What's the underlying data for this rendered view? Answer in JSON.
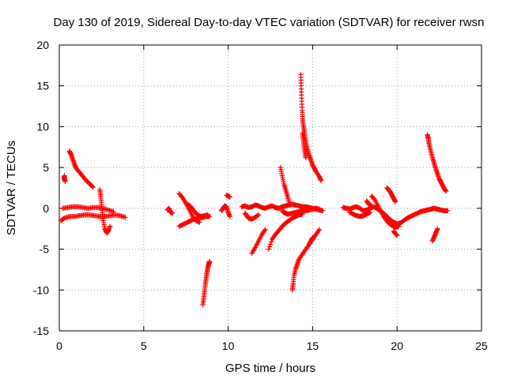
{
  "chart_data": {
    "type": "scatter",
    "title": "Day 130 of 2019, Sidereal Day-to-day VTEC variation (SDTVAR) for receiver rwsn",
    "xlabel": "GPS time / hours",
    "ylabel": "SDTVAR / TECUs",
    "xlim": [
      0,
      25
    ],
    "ylim": [
      -15,
      20
    ],
    "xticks": [
      0,
      5,
      10,
      15,
      20,
      25
    ],
    "yticks": [
      -15,
      -10,
      -5,
      0,
      5,
      10,
      15,
      20
    ],
    "xtick_labels": [
      "0",
      "5",
      "10",
      "15",
      "20",
      "25"
    ],
    "ytick_labels": [
      "-15",
      "-10",
      "-5",
      "0",
      "5",
      "10",
      "15",
      "20"
    ],
    "grid": true,
    "marker": "+",
    "color": "#ff0000",
    "series": [
      {
        "name": "SDTVAR",
        "segments": [
          {
            "x": [
              0.1,
              0.3,
              0.6,
              0.9,
              1.2,
              1.5,
              1.8,
              2.1,
              2.4,
              2.7,
              3.0,
              3.3,
              3.6,
              3.9
            ],
            "y": [
              -1.5,
              -1.2,
              -1.0,
              -1.0,
              -0.9,
              -0.8,
              -0.8,
              -0.9,
              -1.0,
              -1.0,
              -0.9,
              -0.8,
              -0.9,
              -1.1
            ]
          },
          {
            "x": [
              0.2,
              0.5,
              0.8,
              1.1,
              1.4,
              1.7,
              2.0,
              2.3,
              2.6,
              2.9,
              3.2
            ],
            "y": [
              0.0,
              0.1,
              0.2,
              0.2,
              0.1,
              0.0,
              0.1,
              0.1,
              0.0,
              -0.2,
              -0.4
            ]
          },
          {
            "x": [
              0.3,
              0.3,
              0.35
            ],
            "y": [
              4.0,
              3.6,
              3.3
            ]
          },
          {
            "x": [
              0.6,
              0.7,
              0.8,
              0.9,
              1.0,
              1.2,
              1.4,
              1.6,
              1.8,
              2.0
            ],
            "y": [
              7.0,
              6.6,
              6.0,
              5.4,
              4.9,
              4.4,
              3.9,
              3.4,
              3.0,
              2.6
            ]
          },
          {
            "x": [
              2.4,
              2.45,
              2.5,
              2.55,
              2.6,
              2.7,
              2.8,
              2.9,
              3.0
            ],
            "y": [
              2.3,
              1.5,
              0.5,
              -0.5,
              -1.5,
              -2.5,
              -3.0,
              -2.8,
              -2.2
            ]
          },
          {
            "x": [
              6.4,
              6.5,
              6.6,
              6.7
            ],
            "y": [
              -0.2,
              0.0,
              -0.5,
              -0.6
            ]
          },
          {
            "x": [
              7.1,
              7.3,
              7.5,
              7.7,
              7.9,
              8.1,
              8.3,
              8.5,
              8.7,
              8.9
            ],
            "y": [
              -2.2,
              -2.0,
              -1.8,
              -1.6,
              -1.4,
              -1.3,
              -1.2,
              -1.1,
              -1.0,
              -1.0
            ]
          },
          {
            "x": [
              7.1,
              7.3,
              7.5,
              7.7,
              7.9,
              8.1,
              8.3
            ],
            "y": [
              1.8,
              1.3,
              0.6,
              -0.2,
              -1.0,
              -1.5,
              -1.7
            ]
          },
          {
            "x": [
              7.6,
              7.8,
              8.0,
              8.2,
              8.4,
              8.6,
              8.8
            ],
            "y": [
              0.5,
              0.2,
              -0.4,
              -0.8,
              -1.0,
              -0.9,
              -0.8
            ]
          },
          {
            "x": [
              8.5,
              8.55,
              8.6,
              8.65,
              8.7,
              8.75,
              8.8,
              8.85,
              8.9
            ],
            "y": [
              -11.8,
              -11.0,
              -10.2,
              -9.3,
              -8.5,
              -7.8,
              -7.2,
              -6.8,
              -6.5
            ]
          },
          {
            "x": [
              9.6,
              9.7,
              9.8,
              9.9,
              10.0,
              10.1
            ],
            "y": [
              -0.3,
              0.0,
              0.3,
              0.2,
              -0.5,
              -1.0
            ]
          },
          {
            "x": [
              9.9,
              10.0,
              10.1
            ],
            "y": [
              1.6,
              1.5,
              1.4
            ]
          },
          {
            "x": [
              10.8,
              11.0,
              11.2,
              11.4,
              11.6,
              11.8,
              12.0,
              12.2,
              12.4,
              12.6,
              12.8,
              13.0,
              13.2,
              13.4,
              13.6,
              13.8,
              14.0,
              14.2,
              14.4,
              14.6,
              14.8,
              15.0,
              15.2,
              15.4,
              15.6
            ],
            "y": [
              0.2,
              0.3,
              0.1,
              0.2,
              0.4,
              0.3,
              0.1,
              0.0,
              0.2,
              0.3,
              0.1,
              0.0,
              0.2,
              0.3,
              0.4,
              0.5,
              0.4,
              0.3,
              0.2,
              0.2,
              0.1,
              0.0,
              -0.1,
              -0.2,
              -0.3
            ]
          },
          {
            "x": [
              11.0,
              11.1,
              11.2,
              11.4,
              11.6,
              11.8
            ],
            "y": [
              -0.6,
              -0.9,
              -1.2,
              -1.3,
              -1.1,
              -0.8
            ]
          },
          {
            "x": [
              11.4,
              11.6,
              11.8,
              12.0,
              12.2
            ],
            "y": [
              -5.5,
              -4.8,
              -4.0,
              -3.2,
              -2.6
            ]
          },
          {
            "x": [
              12.4,
              12.6,
              12.8,
              13.0,
              13.2,
              13.4,
              13.6,
              13.8,
              14.0,
              14.2,
              14.4
            ],
            "y": [
              -5.0,
              -3.8,
              -3.2,
              -2.7,
              -2.2,
              -1.8,
              -1.5,
              -1.2,
              -1.0,
              -0.8,
              -0.7
            ]
          },
          {
            "x": [
              13.2,
              13.3,
              13.4,
              13.5,
              13.6,
              13.8,
              14.0,
              14.2,
              14.4,
              14.6,
              14.8,
              15.0,
              15.2,
              15.4
            ],
            "y": [
              -0.3,
              -0.5,
              -0.6,
              -0.7,
              -0.7,
              -0.6,
              -0.5,
              -0.4,
              -0.3,
              -0.3,
              -0.2,
              -0.1,
              0.0,
              -0.1
            ]
          },
          {
            "x": [
              13.1,
              13.2,
              13.3,
              13.4,
              13.5,
              13.6
            ],
            "y": [
              5.0,
              4.0,
              3.0,
              2.3,
              1.6,
              0.8
            ]
          },
          {
            "x": [
              13.8,
              13.85,
              13.9,
              14.0,
              14.1,
              14.2,
              14.4,
              14.6,
              14.8,
              15.0,
              15.2,
              15.4
            ],
            "y": [
              -10.0,
              -9.2,
              -8.2,
              -7.4,
              -6.8,
              -6.2,
              -5.6,
              -5.0,
              -4.4,
              -3.8,
              -3.2,
              -2.6
            ]
          },
          {
            "x": [
              14.8,
              14.9,
              15.0
            ],
            "y": [
              -4.4,
              -4.0,
              -3.6
            ]
          },
          {
            "x": [
              14.3,
              14.32,
              14.35,
              14.38,
              14.4,
              14.45,
              14.5,
              14.55,
              14.6,
              14.7,
              14.8,
              14.9,
              15.0,
              15.1,
              15.2,
              15.4,
              15.5
            ],
            "y": [
              16.4,
              15.0,
              13.5,
              12.0,
              11.0,
              10.2,
              9.5,
              8.7,
              8.0,
              7.2,
              6.5,
              5.9,
              5.3,
              4.9,
              4.5,
              3.9,
              3.4
            ]
          },
          {
            "x": [
              14.4,
              14.45,
              14.5,
              14.55,
              14.6
            ],
            "y": [
              9.2,
              8.4,
              7.6,
              6.9,
              6.2
            ]
          },
          {
            "x": [
              16.8,
              17.0,
              17.2,
              17.4,
              17.6,
              17.8,
              18.0,
              18.2,
              18.4,
              18.6,
              18.8,
              19.0,
              19.2,
              19.4,
              19.6,
              19.8,
              20.0,
              20.2,
              20.4,
              20.6,
              20.8,
              21.0,
              21.2,
              21.4,
              21.6,
              21.8,
              22.0,
              22.2,
              22.4,
              22.6,
              22.8,
              23.0
            ],
            "y": [
              0.1,
              0.0,
              -0.1,
              0.1,
              0.2,
              0.0,
              -0.3,
              -0.2,
              0.0,
              0.2,
              0.0,
              -0.3,
              -0.6,
              -1.0,
              -1.4,
              -1.7,
              -1.9,
              -1.8,
              -1.5,
              -1.2,
              -1.0,
              -0.8,
              -0.6,
              -0.4,
              -0.3,
              -0.2,
              -0.1,
              0.0,
              -0.1,
              -0.2,
              -0.3,
              -0.3
            ]
          },
          {
            "x": [
              17.2,
              17.4,
              17.6,
              17.8,
              18.0,
              18.2,
              18.4
            ],
            "y": [
              -0.5,
              -0.7,
              -0.9,
              -1.0,
              -0.9,
              -0.7,
              -0.5
            ]
          },
          {
            "x": [
              18.2,
              18.3,
              18.4,
              18.5
            ],
            "y": [
              0.9,
              0.6,
              0.4,
              0.3
            ]
          },
          {
            "x": [
              18.5,
              18.7,
              18.9,
              19.1,
              19.3,
              19.5,
              19.7,
              19.9,
              20.1
            ],
            "y": [
              1.5,
              1.0,
              0.2,
              -0.6,
              -1.3,
              -1.8,
              -2.1,
              -2.3,
              -2.2
            ]
          },
          {
            "x": [
              19.4,
              19.5,
              19.6,
              19.7,
              19.8,
              19.9
            ],
            "y": [
              2.5,
              2.3,
              2.0,
              1.6,
              1.2,
              0.8
            ]
          },
          {
            "x": [
              19.8,
              19.9,
              20.0
            ],
            "y": [
              -2.8,
              -3.1,
              -3.3
            ]
          },
          {
            "x": [
              21.8,
              21.85,
              21.9,
              22.0,
              22.1,
              22.2,
              22.3,
              22.4,
              22.5,
              22.6,
              22.7,
              22.8,
              22.9
            ],
            "y": [
              9.0,
              8.5,
              7.8,
              7.0,
              6.2,
              5.5,
              4.8,
              4.2,
              3.6,
              3.2,
              2.8,
              2.4,
              2.1
            ]
          },
          {
            "x": [
              22.1,
              22.2,
              22.3,
              22.4
            ],
            "y": [
              -4.0,
              -3.5,
              -3.0,
              -2.5
            ]
          }
        ]
      }
    ]
  }
}
